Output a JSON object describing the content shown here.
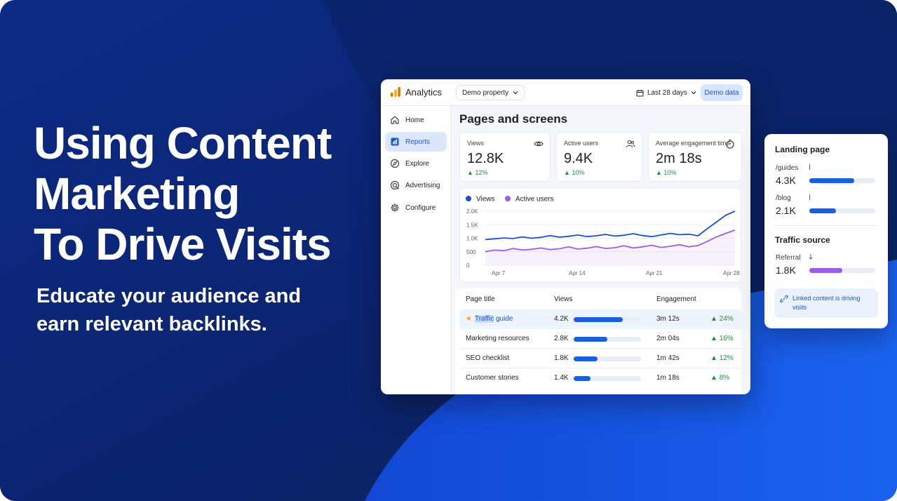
{
  "hero": {
    "title_lines": [
      "Using Content",
      "Marketing",
      "To Drive Visits"
    ],
    "subtitle_lines": [
      "Educate your audience and",
      "earn relevant backlinks."
    ]
  },
  "colors": {
    "background_dark": "#0a2470",
    "background_bright": "#1656e0",
    "accent_blue": "#1a5fe0",
    "accent_purple": "#9a5ee6",
    "positive_green": "#1e8e3e"
  },
  "app": {
    "logo_icon": "bar-chart-logo-icon",
    "name": "Analytics",
    "property_selector": "Demo property",
    "date_range": "Last 28 days",
    "badge": "Demo data"
  },
  "sidebar": {
    "items": [
      {
        "label": "Home",
        "icon": "home-icon",
        "active": false
      },
      {
        "label": "Reports",
        "icon": "reports-icon",
        "active": true
      },
      {
        "label": "Explore",
        "icon": "explore-icon",
        "active": false
      },
      {
        "label": "Advertising",
        "icon": "advertising-icon",
        "active": false
      },
      {
        "label": "Configure",
        "icon": "gear-icon",
        "active": false
      }
    ]
  },
  "main": {
    "title": "Pages and screens",
    "kpis": [
      {
        "label": "Views",
        "value": "12.8K",
        "delta": "12%",
        "icon": "eye-icon"
      },
      {
        "label": "Active users",
        "value": "9.4K",
        "delta": "10%",
        "icon": "users-icon"
      },
      {
        "label": "Average engagement time",
        "value": "2m 18s",
        "delta": "10%",
        "icon": "timer-icon"
      }
    ]
  },
  "chart_data": {
    "type": "line",
    "x_ticks": [
      "Apr 7",
      "Apr 14",
      "Apr 21",
      "Apr 28"
    ],
    "y_ticks": [
      "0",
      "500",
      "1.0K",
      "1.5K",
      "2.0K"
    ],
    "ylim": [
      0,
      2000
    ],
    "x_range": [
      1,
      28
    ],
    "grid": true,
    "legend_position": "top-left",
    "series": [
      {
        "name": "Views",
        "color": "#1a4fd0",
        "x": [
          1,
          2,
          3,
          4,
          5,
          6,
          7,
          8,
          9,
          10,
          11,
          12,
          13,
          14,
          15,
          16,
          17,
          18,
          19,
          20,
          21,
          22,
          23,
          24,
          25,
          26,
          27,
          28
        ],
        "values": [
          950,
          980,
          1010,
          990,
          1050,
          1000,
          1030,
          1100,
          1040,
          1070,
          1120,
          1060,
          1090,
          1140,
          1080,
          1110,
          1170,
          1100,
          1060,
          1120,
          1180,
          1130,
          1150,
          1090,
          1350,
          1600,
          1850,
          2000
        ]
      },
      {
        "name": "Active users",
        "color": "#9a5ee6",
        "x": [
          1,
          2,
          3,
          4,
          5,
          6,
          7,
          8,
          9,
          10,
          11,
          12,
          13,
          14,
          15,
          16,
          17,
          18,
          19,
          20,
          21,
          22,
          23,
          24,
          25,
          26,
          27,
          28
        ],
        "values": [
          500,
          560,
          540,
          620,
          560,
          590,
          640,
          580,
          610,
          680,
          600,
          630,
          690,
          620,
          650,
          720,
          640,
          680,
          740,
          660,
          700,
          760,
          680,
          730,
          880,
          1050,
          1180,
          1300
        ]
      }
    ]
  },
  "table": {
    "headers": {
      "title": "Page title",
      "views": "Views",
      "engagement": "Engagement"
    },
    "rows": [
      {
        "title": "Traffic guide",
        "title_highlight": "Traffic",
        "title_rest": " guide",
        "views": "4.2K",
        "views_fraction": 0.73,
        "engagement": "3m 12s",
        "delta": "24%",
        "starred": true,
        "highlighted": true
      },
      {
        "title": "Marketing resources",
        "views": "2.8K",
        "views_fraction": 0.5,
        "engagement": "2m 04s",
        "delta": "16%",
        "starred": false,
        "highlighted": false
      },
      {
        "title": "SEO checklist",
        "views": "1.8K",
        "views_fraction": 0.35,
        "engagement": "1m 42s",
        "delta": "12%",
        "starred": false,
        "highlighted": false
      },
      {
        "title": "Customer stories",
        "views": "1.4K",
        "views_fraction": 0.25,
        "engagement": "1m 18s",
        "delta": "8%",
        "starred": false,
        "highlighted": false
      }
    ]
  },
  "landing_card": {
    "title": "Landing page",
    "items": [
      {
        "path": "/guides",
        "value": "4.3K",
        "fraction": 0.68,
        "color": "#1a5fe0"
      },
      {
        "path": "/blog",
        "value": "2.1K",
        "fraction": 0.4,
        "color": "#1a5fe0"
      }
    ],
    "traffic_title": "Traffic source",
    "traffic_item": {
      "label": "Referral",
      "value": "1.8K",
      "fraction": 0.5,
      "color": "#9a5ee6"
    },
    "note": "Linked content is driving visits",
    "note_icon": "link-icon"
  }
}
